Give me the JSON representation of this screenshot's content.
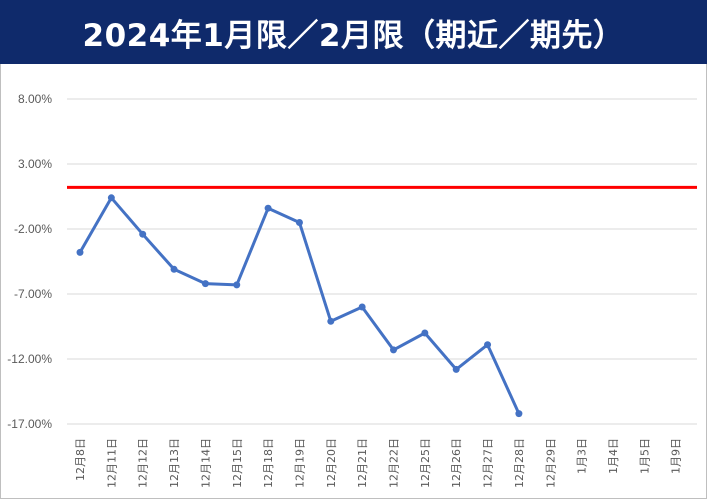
{
  "chart_data": {
    "type": "line",
    "title": "2024年1月限／2月限（期近／期先）",
    "categories": [
      "12月8日",
      "12月11日",
      "12月12日",
      "12月13日",
      "12月14日",
      "12月15日",
      "12月18日",
      "12月19日",
      "12月20日",
      "12月21日",
      "12月22日",
      "12月25日",
      "12月26日",
      "12月27日",
      "12月28日",
      "12月29日",
      "1月3日",
      "1月4日",
      "1月5日",
      "1月9日"
    ],
    "series": [
      {
        "values": [
          -3.8,
          0.4,
          -2.4,
          -5.1,
          -6.2,
          -6.3,
          -0.4,
          -1.5,
          -9.1,
          -8.0,
          -11.3,
          -10.0,
          -12.8,
          -10.9,
          -16.2,
          null,
          null,
          null,
          null,
          null
        ]
      }
    ],
    "reference_line": {
      "value": 1.2
    },
    "ylim": [
      -17,
      8
    ],
    "yticks": [
      8,
      3,
      -2,
      -7,
      -12,
      -17
    ],
    "ytick_labels": [
      "8.00%",
      "3.00%",
      "-2.00%",
      "-7.00%",
      "-12.00%",
      "-17.00%"
    ],
    "grid": true,
    "colors": {
      "line": "#4472c4",
      "reference": "#ff0000",
      "title_bg": "#0f2a6b",
      "grid": "#d9d9d9"
    }
  }
}
